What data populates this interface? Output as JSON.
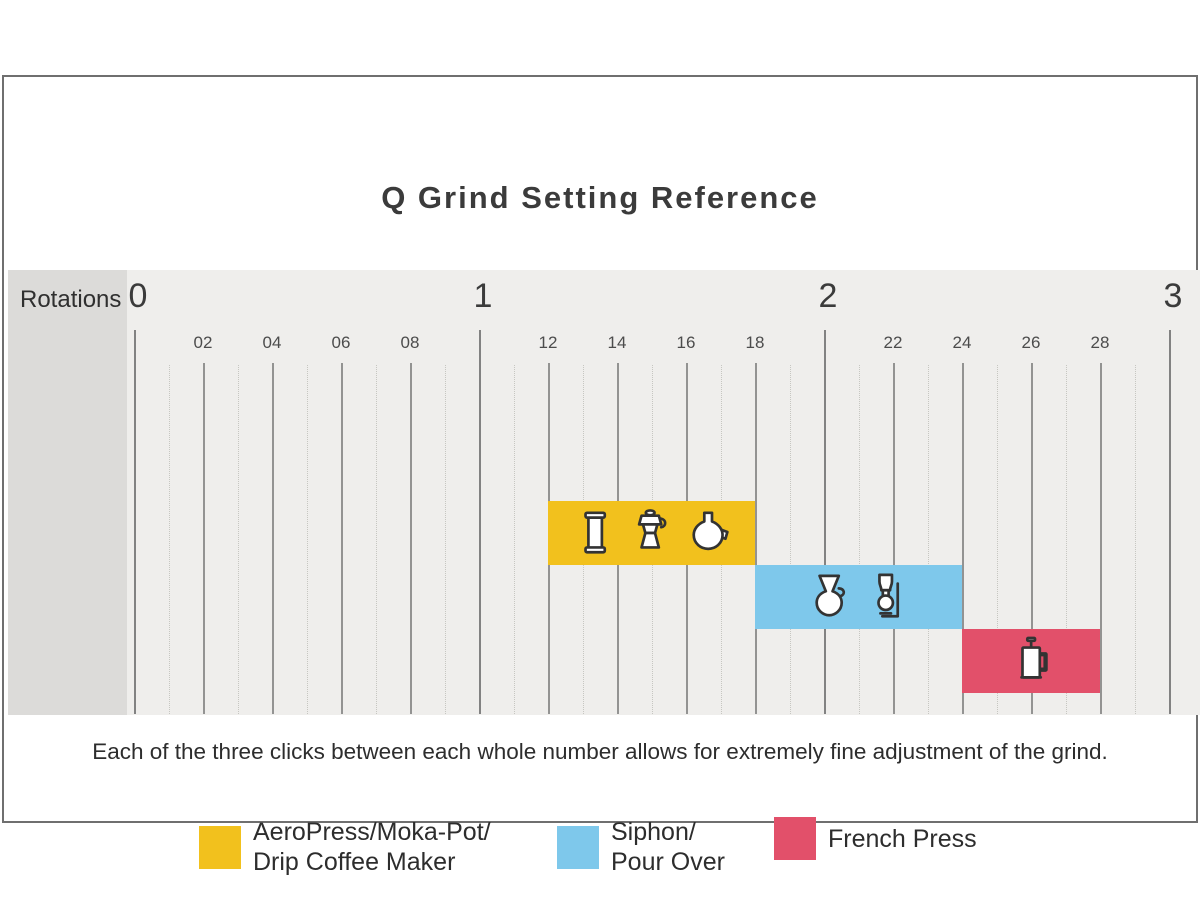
{
  "title": "Q Grind Setting Reference",
  "axis": {
    "label": "Rotations",
    "major_tick_labels": [
      "0",
      "1",
      "2",
      "3"
    ],
    "minor_tick_labels": [
      "02",
      "04",
      "06",
      "08",
      "12",
      "14",
      "16",
      "18",
      "22",
      "24",
      "26",
      "28"
    ]
  },
  "note": "Each of the three clicks between each whole number allows for extremely fine adjustment of the grind.",
  "legend": [
    {
      "lines": [
        "AeroPress/Moka-Pot/",
        "Drip Coffee Maker"
      ],
      "color": "#f2c11d"
    },
    {
      "lines": [
        "Siphon/",
        "Pour Over"
      ],
      "color": "#7ec8eb"
    },
    {
      "lines": [
        "French Press"
      ],
      "color": "#e2506a"
    }
  ],
  "colors": {
    "band_background": "#efeeec",
    "axis_panel_background": "#dcdbd9",
    "yellow": "#f2c11d",
    "blue": "#7ec8eb",
    "red": "#e2506a"
  },
  "chart_data": {
    "type": "bar",
    "subtype": "horizontal-range-bars",
    "title": "Q Grind Setting Reference",
    "xlabel": "Rotations",
    "x_axis": {
      "min": 0,
      "max": 3,
      "major_step": 1,
      "minor_step": 0.1,
      "clicks_per_whole_number": "three"
    },
    "grid": true,
    "series": [
      {
        "name": "AeroPress/Moka-Pot/Drip Coffee Maker",
        "range": [
          1.2,
          1.8
        ],
        "color": "#f2c11d",
        "icons": [
          "aeropress",
          "moka-pot",
          "drip-coffee-maker"
        ]
      },
      {
        "name": "Siphon/Pour Over",
        "range": [
          1.8,
          2.4
        ],
        "color": "#7ec8eb",
        "icons": [
          "pour-over",
          "siphon"
        ]
      },
      {
        "name": "French Press",
        "range": [
          2.4,
          2.8
        ],
        "color": "#e2506a",
        "icons": [
          "french-press"
        ]
      }
    ],
    "legend_position": "bottom"
  }
}
